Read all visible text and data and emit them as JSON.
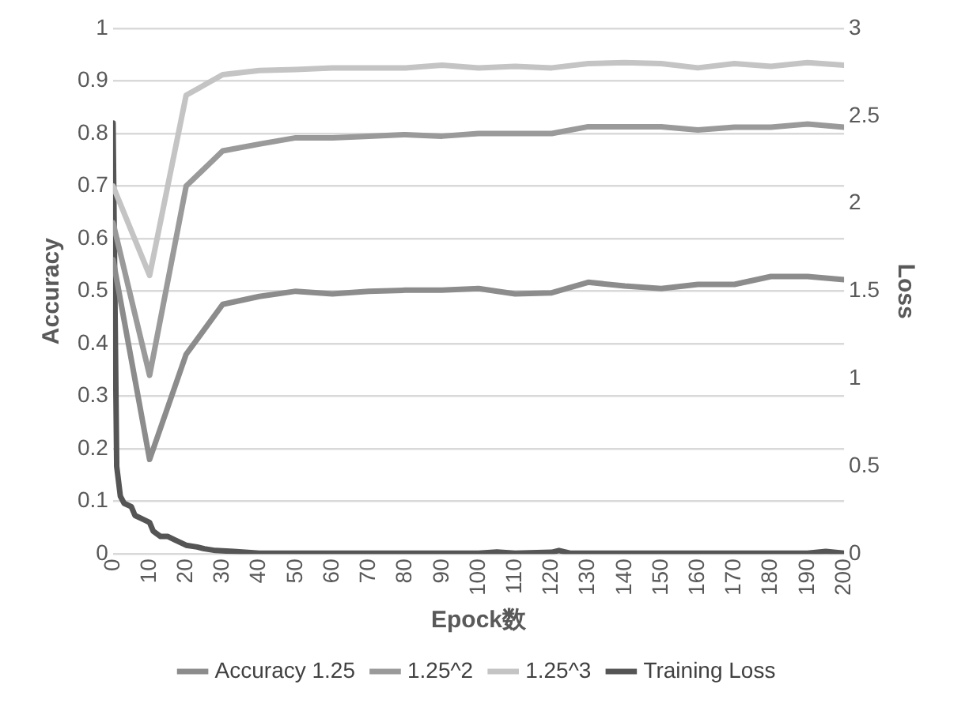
{
  "chart_data": {
    "type": "line",
    "xlabel": "Epock数",
    "ylabel": "Accuracy",
    "y2label": "Loss",
    "xlim": [
      0,
      200
    ],
    "xticks": [
      0,
      10,
      20,
      30,
      40,
      50,
      60,
      70,
      80,
      90,
      100,
      110,
      120,
      130,
      140,
      150,
      160,
      170,
      180,
      190,
      200
    ],
    "ylim": [
      0,
      1
    ],
    "yticks": [
      0,
      0.1,
      0.2,
      0.3,
      0.4,
      0.5,
      0.6,
      0.7,
      0.8,
      0.9,
      1
    ],
    "y2lim": [
      0,
      3
    ],
    "y2ticks": [
      0,
      0.5,
      1,
      1.5,
      2,
      2.5,
      3
    ],
    "grid": "y",
    "legend": "bottom",
    "marker": "none",
    "line_style": "solid",
    "series": [
      {
        "name": "Accuracy 1.25",
        "color": "#8c8c8c",
        "x": [
          0,
          10,
          20,
          30,
          40,
          50,
          60,
          70,
          80,
          90,
          100,
          110,
          120,
          130,
          140,
          150,
          160,
          170,
          180,
          190,
          200
        ],
        "values": [
          0.56,
          0.18,
          0.38,
          0.475,
          0.49,
          0.5,
          0.495,
          0.5,
          0.502,
          0.502,
          0.505,
          0.495,
          0.497,
          0.517,
          0.51,
          0.505,
          0.513,
          0.513,
          0.528,
          0.528,
          0.522
        ]
      },
      {
        "name": "1.25^2",
        "color": "#9a9a9a",
        "x": [
          0,
          10,
          20,
          30,
          40,
          50,
          60,
          70,
          80,
          90,
          100,
          110,
          120,
          130,
          140,
          150,
          160,
          170,
          180,
          190,
          200
        ],
        "values": [
          0.63,
          0.34,
          0.7,
          0.767,
          0.78,
          0.792,
          0.792,
          0.795,
          0.798,
          0.795,
          0.8,
          0.8,
          0.8,
          0.813,
          0.813,
          0.813,
          0.807,
          0.812,
          0.812,
          0.818,
          0.812
        ]
      },
      {
        "name": "1.25^3",
        "color": "#c4c4c4",
        "x": [
          0,
          10,
          20,
          30,
          40,
          50,
          60,
          70,
          80,
          90,
          100,
          110,
          120,
          130,
          140,
          150,
          160,
          170,
          180,
          190,
          200
        ],
        "values": [
          0.7,
          0.53,
          0.873,
          0.912,
          0.92,
          0.922,
          0.925,
          0.925,
          0.925,
          0.93,
          0.925,
          0.928,
          0.925,
          0.933,
          0.935,
          0.933,
          0.925,
          0.933,
          0.928,
          0.935,
          0.93
        ]
      },
      {
        "name": "Training Loss",
        "color": "#555555",
        "axis": "y2",
        "x": [
          0,
          1,
          2,
          3,
          5,
          6,
          8,
          10,
          11,
          13,
          15,
          17,
          20,
          23,
          25,
          28,
          33,
          40,
          60,
          100,
          105,
          110,
          120,
          122,
          125,
          130,
          160,
          190,
          195,
          200
        ],
        "values": [
          2.46,
          0.5,
          0.33,
          0.29,
          0.27,
          0.22,
          0.2,
          0.18,
          0.13,
          0.1,
          0.1,
          0.08,
          0.05,
          0.04,
          0.03,
          0.02,
          0.015,
          0.005,
          0.005,
          0.005,
          0.012,
          0.005,
          0.01,
          0.02,
          0.005,
          0.005,
          0.005,
          0.005,
          0.015,
          0.005
        ]
      }
    ]
  }
}
